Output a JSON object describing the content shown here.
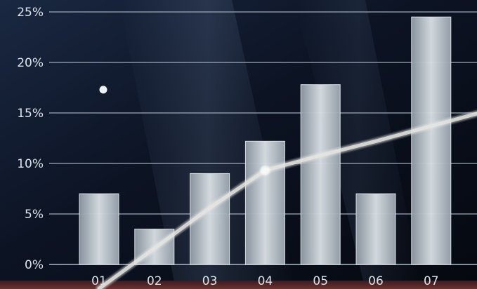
{
  "chart_data": {
    "type": "bar",
    "categories": [
      "01",
      "02",
      "03",
      "04",
      "05",
      "06",
      "07"
    ],
    "values": [
      7,
      3.5,
      9,
      12.2,
      17.8,
      7,
      24.5
    ],
    "y_ticks": [
      "0%",
      "5%",
      "10%",
      "15%",
      "20%",
      "25%"
    ],
    "ylim": [
      0,
      25
    ],
    "grid": true,
    "trend_line": {
      "x": [
        "01",
        "02",
        "03",
        "04",
        "05",
        "06",
        "07"
      ],
      "values": [
        -2.4,
        1.6,
        5.6,
        9.3,
        10.8,
        12.2,
        13.7
      ]
    },
    "marker_points": [
      {
        "x": "01",
        "value": 17.3
      }
    ],
    "colors": {
      "background": "#0d1424",
      "bar_fill": "#c4ccd3",
      "grid": "#9aa7b6",
      "trend_line": "#e6e6e2",
      "tick_text": "#dde3ea",
      "bottom_band": "#5a2b2d"
    }
  }
}
